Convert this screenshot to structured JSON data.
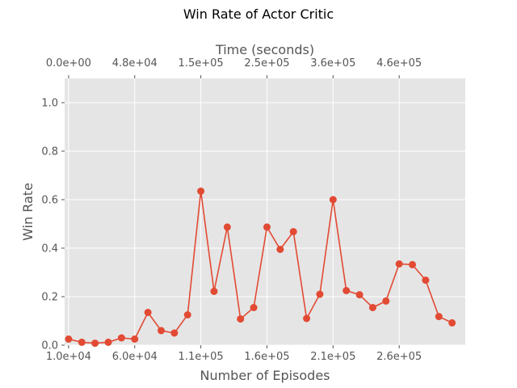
{
  "chart_data": {
    "type": "line",
    "title": "Win Rate of Actor Critic",
    "xlabel": "Number of Episodes",
    "ylabel": "Win Rate",
    "x2label": "Time (seconds)",
    "xlim": [
      7000,
      310000
    ],
    "ylim": [
      0,
      1.1
    ],
    "x_ticks": [
      {
        "value": 10000,
        "label": "1.0e+04"
      },
      {
        "value": 60000,
        "label": "6.0e+04"
      },
      {
        "value": 110000,
        "label": "1.1e+05"
      },
      {
        "value": 160000,
        "label": "1.6e+05"
      },
      {
        "value": 210000,
        "label": "2.1e+05"
      },
      {
        "value": 260000,
        "label": "2.6e+05"
      }
    ],
    "x2_ticks": [
      {
        "value": 10000,
        "label": "0.0e+00"
      },
      {
        "value": 60000,
        "label": "4.8e+04"
      },
      {
        "value": 110000,
        "label": "1.5e+05"
      },
      {
        "value": 160000,
        "label": "2.5e+05"
      },
      {
        "value": 210000,
        "label": "3.6e+05"
      },
      {
        "value": 260000,
        "label": "4.6e+05"
      }
    ],
    "y_ticks": [
      {
        "value": 0.0,
        "label": "0.0"
      },
      {
        "value": 0.2,
        "label": "0.2"
      },
      {
        "value": 0.4,
        "label": "0.4"
      },
      {
        "value": 0.6,
        "label": "0.6"
      },
      {
        "value": 0.8,
        "label": "0.8"
      },
      {
        "value": 1.0,
        "label": "1.0"
      }
    ],
    "grid": true,
    "series": [
      {
        "color": "#e24a33",
        "x": [
          10000,
          20000,
          30000,
          40000,
          50000,
          60000,
          70000,
          80000,
          90000,
          100000,
          110000,
          120000,
          130000,
          140000,
          150000,
          160000,
          170000,
          180000,
          190000,
          200000,
          210000,
          220000,
          230000,
          240000,
          250000,
          260000,
          270000,
          280000,
          290000,
          300000
        ],
        "y": [
          0.025,
          0.012,
          0.008,
          0.012,
          0.03,
          0.025,
          0.135,
          0.06,
          0.05,
          0.125,
          0.635,
          0.222,
          0.487,
          0.108,
          0.155,
          0.487,
          0.395,
          0.468,
          0.11,
          0.21,
          0.6,
          0.225,
          0.208,
          0.155,
          0.182,
          0.335,
          0.332,
          0.268,
          0.118,
          0.092
        ]
      }
    ]
  }
}
